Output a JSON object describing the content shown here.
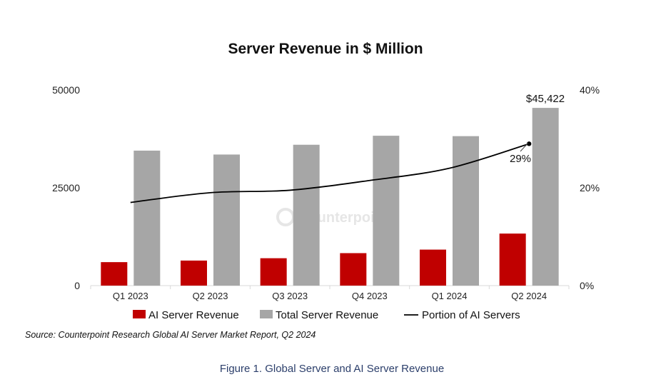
{
  "chart_data": {
    "type": "bar",
    "title": "Server Revenue in $ Million",
    "categories": [
      "Q1 2023",
      "Q2 2023",
      "Q3 2023",
      "Q4 2023",
      "Q1 2024",
      "Q2 2024"
    ],
    "series": [
      {
        "name": "AI Server Revenue",
        "type": "bar",
        "axis": "left",
        "color": "#c00000",
        "values": [
          6000,
          6400,
          7000,
          8300,
          9200,
          13300
        ]
      },
      {
        "name": "Total Server Revenue",
        "type": "bar",
        "axis": "left",
        "color": "#a6a6a6",
        "values": [
          34500,
          33500,
          36000,
          38300,
          38200,
          45422
        ]
      },
      {
        "name": "Portion of AI Servers",
        "type": "line",
        "axis": "right",
        "color": "#000000",
        "values": [
          17,
          19,
          19.5,
          21.5,
          24,
          29
        ]
      }
    ],
    "y_left": {
      "ylim": [
        0,
        50000
      ],
      "ticks": [
        "0",
        "25000",
        "50000"
      ]
    },
    "y_right": {
      "ylim": [
        0,
        40
      ],
      "ticks": [
        "0%",
        "20%",
        "40%"
      ]
    },
    "annotations": {
      "last_total": "$45,422",
      "last_portion": "29%"
    },
    "legend_position": "bottom",
    "grid": false,
    "watermark": "Counterpoint"
  },
  "source": "Source: Counterpoint Research Global AI Server Market Report, Q2 2024",
  "caption": "Figure 1. Global Server and AI Server Revenue"
}
